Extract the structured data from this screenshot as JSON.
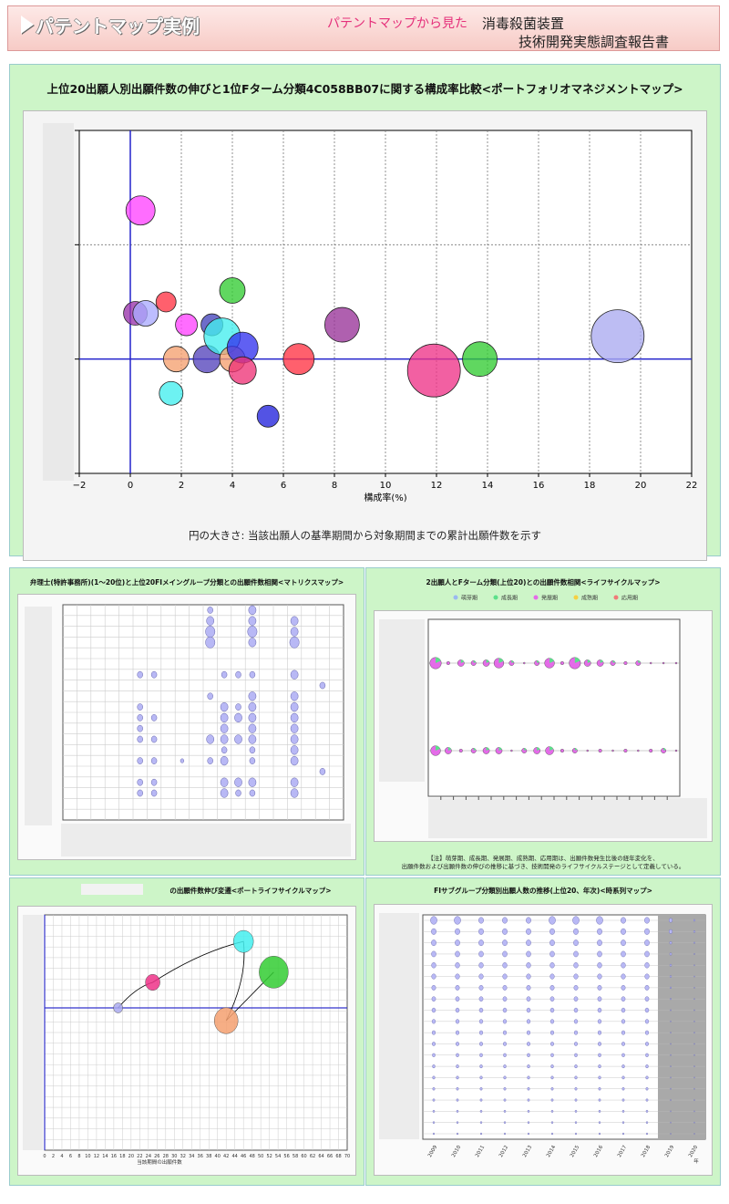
{
  "header": {
    "label": "パテントマップ実例",
    "subtitle": "パテントマップから見た",
    "title_line1": "消毒殺菌装置",
    "title_line2": "技術開発実態調査報告書"
  },
  "main": {
    "title": "上位20出願人別出願件数の伸びと1位Fターム分類4C058BB07に関する構成率比較<ポートフォリオマネジメントマップ>",
    "note": "円の大きさ: 当該出願人の基準期間から対象期間までの累計出願件数を示す"
  },
  "chart_data": [
    {
      "type": "scatter",
      "title": "上位20出願人別出願件数の伸びと1位Fターム分類4C058BB07に関する構成率比較<ポートフォリオマネジメントマップ>",
      "xlabel": "構成率(%)",
      "ylabel": "",
      "xlim": [
        -2,
        22
      ],
      "ylim": [
        -1,
        2
      ],
      "xticks": [
        "−2",
        "0",
        "2",
        "4",
        "6",
        "8",
        "10",
        "12",
        "14",
        "16",
        "18",
        "20",
        "22"
      ],
      "grid": true,
      "points": [
        {
          "x": 0.4,
          "y": 1.3,
          "r": 16,
          "color": "#ff44ff"
        },
        {
          "x": 0.2,
          "y": 0.4,
          "r": 13,
          "color": "#9933aa"
        },
        {
          "x": 0.6,
          "y": 0.4,
          "r": 14,
          "color": "#aaaaff"
        },
        {
          "x": 1.4,
          "y": 0.5,
          "r": 11,
          "color": "#ff3344"
        },
        {
          "x": 1.6,
          "y": -0.3,
          "r": 13,
          "color": "#44eeee"
        },
        {
          "x": 1.8,
          "y": 0.0,
          "r": 14,
          "color": "#f5a070"
        },
        {
          "x": 2.2,
          "y": 0.3,
          "r": 12,
          "color": "#ff44ff"
        },
        {
          "x": 3.0,
          "y": 0.0,
          "r": 15,
          "color": "#5544bb"
        },
        {
          "x": 3.2,
          "y": 0.3,
          "r": 12,
          "color": "#4444bb"
        },
        {
          "x": 3.6,
          "y": 0.2,
          "r": 20,
          "color": "#44eeee"
        },
        {
          "x": 4.0,
          "y": 0.6,
          "r": 14,
          "color": "#33cc33"
        },
        {
          "x": 4.0,
          "y": 0.0,
          "r": 14,
          "color": "#f5a070"
        },
        {
          "x": 4.4,
          "y": 0.1,
          "r": 17,
          "color": "#3333ee"
        },
        {
          "x": 4.4,
          "y": -0.1,
          "r": 15,
          "color": "#ee3377"
        },
        {
          "x": 5.4,
          "y": -0.5,
          "r": 12,
          "color": "#2222dd"
        },
        {
          "x": 6.6,
          "y": 0.0,
          "r": 17,
          "color": "#ff3344"
        },
        {
          "x": 8.3,
          "y": 0.3,
          "r": 19,
          "color": "#993399"
        },
        {
          "x": 11.9,
          "y": -0.1,
          "r": 29,
          "color": "#ee3388"
        },
        {
          "x": 13.7,
          "y": 0.0,
          "r": 19,
          "color": "#33cc33"
        },
        {
          "x": 19.1,
          "y": 0.2,
          "r": 29,
          "color": "#aaaaf0"
        }
      ]
    },
    {
      "type": "scatter",
      "title": "弁理士(特許事務所)(1〜20位)と上位20FIメイングループ分類との出願件数相関<マトリクスマップ>"
    },
    {
      "type": "scatter",
      "title": "2出願人とFターム分類(上位20)との出願件数相関<ライフサイクルマップ>",
      "legend": [
        "萌芽期",
        "成長期",
        "発展期",
        "成熟期",
        "応用期"
      ],
      "note_line1": "【注】萌芽期、成長期、発展期、成熟期、応用期は、出願件数発生比後の経年変化を、",
      "note_line2": "出願件数および出願件数の伸びの推移に基づき、技術開発のライフサイクルステージとして定義している。"
    },
    {
      "type": "line",
      "title": "の出願件数伸び変遷<ポートライフサイクルマップ>",
      "xlabel": "当該期間の出願件数",
      "xticks": [
        "0",
        "2",
        "4",
        "6",
        "8",
        "10",
        "12",
        "14",
        "16",
        "18",
        "20",
        "22",
        "24",
        "26",
        "28",
        "30",
        "32",
        "34",
        "36",
        "38",
        "40",
        "42",
        "44",
        "46",
        "48",
        "50",
        "52",
        "54",
        "56",
        "58",
        "60",
        "62",
        "64",
        "66",
        "68",
        "70"
      ],
      "points": [
        {
          "x": 17,
          "y": 0,
          "r": 5,
          "color": "#aaaaf0"
        },
        {
          "x": 25,
          "y": 1,
          "r": 8,
          "color": "#ee3388"
        },
        {
          "x": 46,
          "y": 2.6,
          "r": 11,
          "color": "#44eeee"
        },
        {
          "x": 53,
          "y": 1.4,
          "r": 16,
          "color": "#33cc33"
        },
        {
          "x": 42,
          "y": -0.5,
          "r": 13,
          "color": "#f5a070"
        }
      ]
    },
    {
      "type": "scatter",
      "title": "FIサブグループ分類別出願人数の推移(上位20、年次)<時系列マップ>",
      "xticks": [
        "2009",
        "2010",
        "2011",
        "2012",
        "2013",
        "2014",
        "2015",
        "2016",
        "2017",
        "2018",
        "2019",
        "2020"
      ],
      "xunit": "年"
    }
  ]
}
